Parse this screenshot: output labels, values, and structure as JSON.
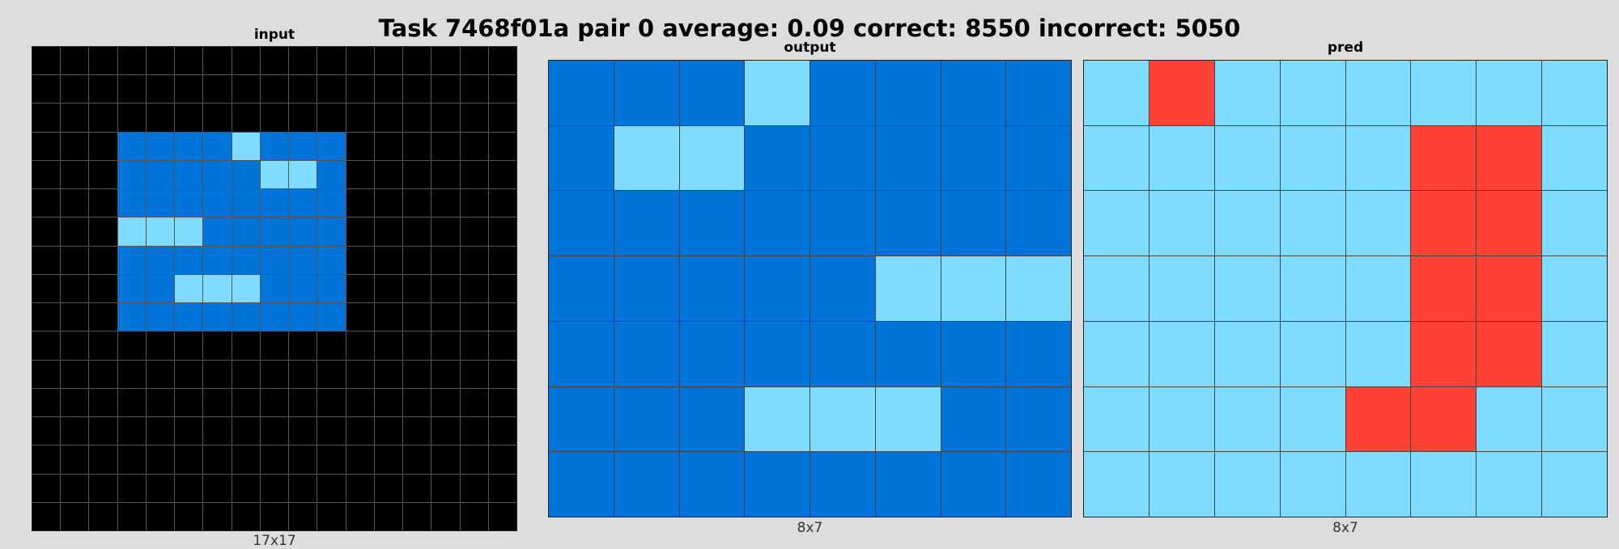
{
  "title": "Task 7468f01a pair 0 average: 0.09 correct: 8550 incorrect: 5050",
  "colors": {
    "0": "#000000",
    "1": "#0074d9",
    "2": "#ff4136",
    "8": "#7fdbff"
  },
  "panels": {
    "input": {
      "label": "input",
      "size_label": "17x17",
      "grid": [
        [
          0,
          0,
          0,
          0,
          0,
          0,
          0,
          0,
          0,
          0,
          0,
          0,
          0,
          0,
          0,
          0,
          0
        ],
        [
          0,
          0,
          0,
          0,
          0,
          0,
          0,
          0,
          0,
          0,
          0,
          0,
          0,
          0,
          0,
          0,
          0
        ],
        [
          0,
          0,
          0,
          0,
          0,
          0,
          0,
          0,
          0,
          0,
          0,
          0,
          0,
          0,
          0,
          0,
          0
        ],
        [
          0,
          0,
          0,
          1,
          1,
          1,
          1,
          8,
          1,
          1,
          1,
          0,
          0,
          0,
          0,
          0,
          0
        ],
        [
          0,
          0,
          0,
          1,
          1,
          1,
          1,
          1,
          8,
          8,
          1,
          0,
          0,
          0,
          0,
          0,
          0
        ],
        [
          0,
          0,
          0,
          1,
          1,
          1,
          1,
          1,
          1,
          1,
          1,
          0,
          0,
          0,
          0,
          0,
          0
        ],
        [
          0,
          0,
          0,
          8,
          8,
          8,
          1,
          1,
          1,
          1,
          1,
          0,
          0,
          0,
          0,
          0,
          0
        ],
        [
          0,
          0,
          0,
          1,
          1,
          1,
          1,
          1,
          1,
          1,
          1,
          0,
          0,
          0,
          0,
          0,
          0
        ],
        [
          0,
          0,
          0,
          1,
          1,
          8,
          8,
          8,
          1,
          1,
          1,
          0,
          0,
          0,
          0,
          0,
          0
        ],
        [
          0,
          0,
          0,
          1,
          1,
          1,
          1,
          1,
          1,
          1,
          1,
          0,
          0,
          0,
          0,
          0,
          0
        ],
        [
          0,
          0,
          0,
          0,
          0,
          0,
          0,
          0,
          0,
          0,
          0,
          0,
          0,
          0,
          0,
          0,
          0
        ],
        [
          0,
          0,
          0,
          0,
          0,
          0,
          0,
          0,
          0,
          0,
          0,
          0,
          0,
          0,
          0,
          0,
          0
        ],
        [
          0,
          0,
          0,
          0,
          0,
          0,
          0,
          0,
          0,
          0,
          0,
          0,
          0,
          0,
          0,
          0,
          0
        ],
        [
          0,
          0,
          0,
          0,
          0,
          0,
          0,
          0,
          0,
          0,
          0,
          0,
          0,
          0,
          0,
          0,
          0
        ],
        [
          0,
          0,
          0,
          0,
          0,
          0,
          0,
          0,
          0,
          0,
          0,
          0,
          0,
          0,
          0,
          0,
          0
        ],
        [
          0,
          0,
          0,
          0,
          0,
          0,
          0,
          0,
          0,
          0,
          0,
          0,
          0,
          0,
          0,
          0,
          0
        ],
        [
          0,
          0,
          0,
          0,
          0,
          0,
          0,
          0,
          0,
          0,
          0,
          0,
          0,
          0,
          0,
          0,
          0
        ]
      ]
    },
    "output": {
      "label": "output",
      "size_label": "8x7",
      "grid": [
        [
          1,
          1,
          1,
          8,
          1,
          1,
          1,
          1
        ],
        [
          1,
          8,
          8,
          1,
          1,
          1,
          1,
          1
        ],
        [
          1,
          1,
          1,
          1,
          1,
          1,
          1,
          1
        ],
        [
          1,
          1,
          1,
          1,
          1,
          8,
          8,
          8
        ],
        [
          1,
          1,
          1,
          1,
          1,
          1,
          1,
          1
        ],
        [
          1,
          1,
          1,
          8,
          8,
          8,
          1,
          1
        ],
        [
          1,
          1,
          1,
          1,
          1,
          1,
          1,
          1
        ]
      ]
    },
    "pred": {
      "label": "pred",
      "size_label": "8x7",
      "grid": [
        [
          8,
          2,
          8,
          8,
          8,
          8,
          8,
          8
        ],
        [
          8,
          8,
          8,
          8,
          8,
          2,
          2,
          8
        ],
        [
          8,
          8,
          8,
          8,
          8,
          2,
          2,
          8
        ],
        [
          8,
          8,
          8,
          8,
          8,
          2,
          2,
          8
        ],
        [
          8,
          8,
          8,
          8,
          8,
          2,
          2,
          8
        ],
        [
          8,
          8,
          8,
          8,
          2,
          2,
          8,
          8
        ],
        [
          8,
          8,
          8,
          8,
          8,
          8,
          8,
          8
        ]
      ]
    }
  }
}
